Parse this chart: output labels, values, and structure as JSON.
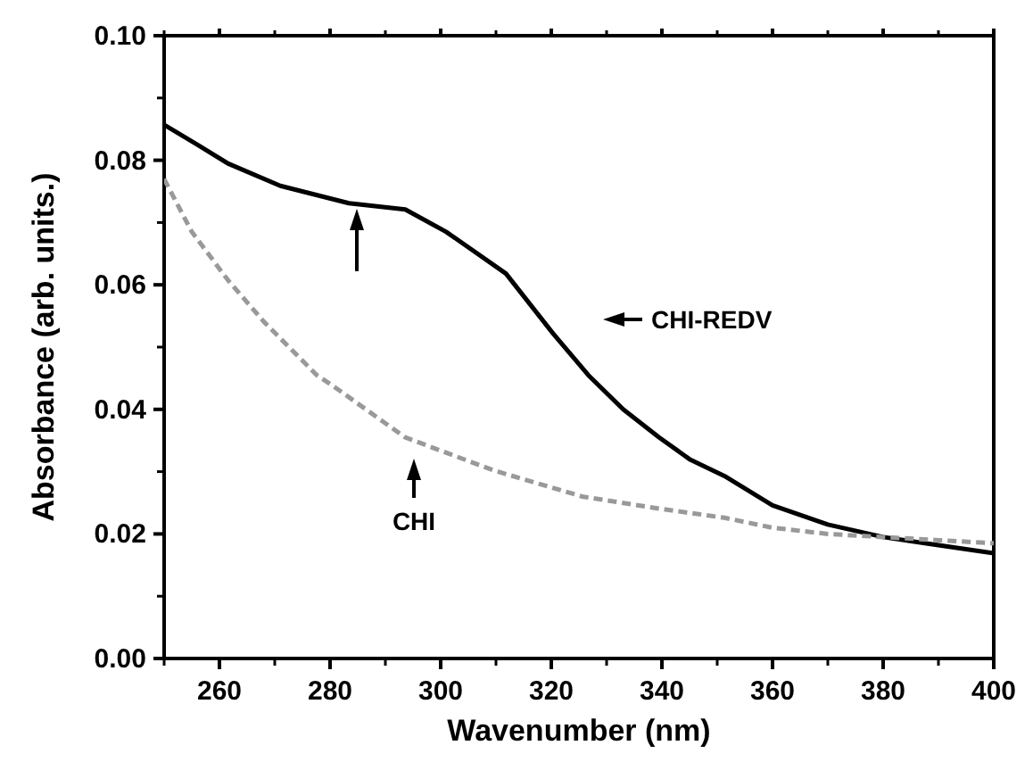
{
  "chart_data": {
    "type": "line",
    "xlabel": "Wavenumber (nm)",
    "ylabel": "Absorbance (arb. units.)",
    "xlim": [
      250,
      400
    ],
    "xticks": [
      260,
      280,
      300,
      320,
      340,
      360,
      380,
      400
    ],
    "ylim": [
      0,
      0.1
    ],
    "yticks": [
      {
        "value": 0,
        "label": "0.00"
      },
      {
        "value": 0.02,
        "label": "0.02"
      },
      {
        "value": 0.04,
        "label": "0.04"
      },
      {
        "value": 0.06,
        "label": "0.06"
      },
      {
        "value": 0.08,
        "label": "0.08"
      },
      {
        "value": 0.1,
        "label": "0.10"
      }
    ],
    "grid": false,
    "series": [
      {
        "name": "CHI-REDV",
        "color": "#000000",
        "line_style": "solid",
        "x": [
          250,
          256,
          261.5,
          271,
          283.4,
          293.6,
          301,
          311.8,
          320.3,
          326.7,
          333,
          339.5,
          345,
          351.3,
          360,
          370,
          380,
          390,
          400
        ],
        "values": [
          0.0857,
          0.0825,
          0.0795,
          0.0759,
          0.0731,
          0.0721,
          0.0685,
          0.0618,
          0.0522,
          0.0455,
          0.04,
          0.0355,
          0.032,
          0.0293,
          0.0246,
          0.0215,
          0.0195,
          0.0182,
          0.0169
        ]
      },
      {
        "name": "CHI",
        "color": "#999999",
        "line_style": "dashed",
        "x": [
          250,
          255,
          261.5,
          268,
          277.6,
          280.8,
          293.6,
          309.6,
          325.6,
          340,
          351.3,
          360,
          370,
          380,
          390,
          400
        ],
        "values": [
          0.077,
          0.0685,
          0.0608,
          0.0541,
          0.0455,
          0.0436,
          0.0355,
          0.0302,
          0.026,
          0.024,
          0.0226,
          0.021,
          0.02,
          0.0195,
          0.019,
          0.0185
        ]
      }
    ]
  }
}
